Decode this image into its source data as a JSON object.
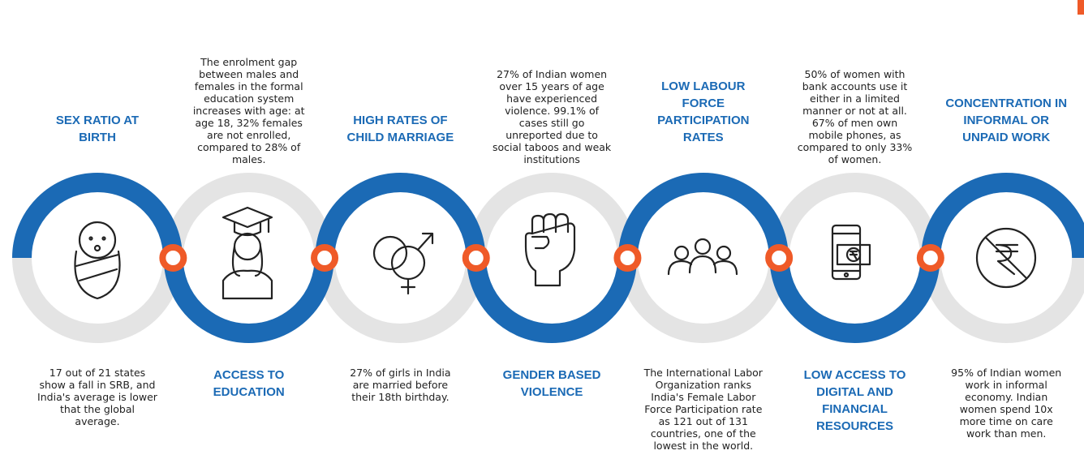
{
  "items": [
    {
      "title": "SEX RATIO AT BIRTH",
      "text": "17 out of 21 states show a fall in SRB, and India's average is lower that the global average."
    },
    {
      "title": "ACCESS TO EDUCATION",
      "text": "The enrolment gap between males and females in the formal education system increases with age: at age 18, 32% females are not enrolled, compared to 28% of males."
    },
    {
      "title": "HIGH RATES OF CHILD MARRIAGE",
      "text": "27% of girls in India are married before their 18th birthday."
    },
    {
      "title": "GENDER BASED VIOLENCE",
      "text": "27% of Indian women over 15 years of age have experienced violence. 99.1% of cases still go unreported due to social taboos and weak institutions"
    },
    {
      "title": "LOW LABOUR FORCE PARTICIPATION RATES",
      "text": "The International Labor Organization ranks India's Female Labor Force Participation rate as 121 out of 131 countries, one of the lowest in the world."
    },
    {
      "title": "LOW ACCESS TO DIGITAL AND FINANCIAL RESOURCES",
      "text": "50% of women with bank accounts use it either in a limited manner or not at all. 67% of men own mobile phones, as compared to only 33% of women."
    },
    {
      "title": "CONCENTRATION IN INFORMAL OR UNPAID WORK",
      "text": "95% of Indian women work in informal economy. Indian women spend 10x more time on care work than men."
    }
  ]
}
